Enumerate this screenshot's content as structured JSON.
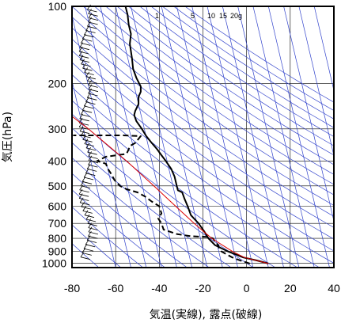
{
  "chart_data": {
    "type": "line",
    "chart_kind": "emagram",
    "xlabel": "気温(実線), 露点(破線)",
    "ylabel": "気圧(hPa)",
    "xlim": [
      -80,
      40
    ],
    "ylim": [
      1040,
      100
    ],
    "y_scale": "log",
    "grid": true,
    "x_ticks": [
      -80,
      -60,
      -40,
      -20,
      0,
      20,
      40
    ],
    "y_ticks": [
      100,
      200,
      300,
      400,
      500,
      600,
      700,
      800,
      900,
      1000
    ],
    "mixing_ratio_labels": [
      "1",
      "5",
      "10",
      "15",
      "20",
      "g"
    ],
    "series": [
      {
        "role": "temperature",
        "style": "solid",
        "color": "#000000",
        "points": [
          {
            "t": 10.0,
            "p": 1003
          },
          {
            "t": 4.5,
            "p": 975
          },
          {
            "t": -1.5,
            "p": 950
          },
          {
            "t": -8.5,
            "p": 900
          },
          {
            "t": -14.5,
            "p": 850
          },
          {
            "t": -17.5,
            "p": 800
          },
          {
            "t": -19.5,
            "p": 750
          },
          {
            "t": -22.0,
            "p": 700
          },
          {
            "t": -25.5,
            "p": 650
          },
          {
            "t": -27.0,
            "p": 600
          },
          {
            "t": -28.5,
            "p": 560
          },
          {
            "t": -29.5,
            "p": 530
          },
          {
            "t": -31.5,
            "p": 520
          },
          {
            "t": -32.0,
            "p": 500
          },
          {
            "t": -33.0,
            "p": 460
          },
          {
            "t": -34.5,
            "p": 430
          },
          {
            "t": -37.0,
            "p": 400
          },
          {
            "t": -39.0,
            "p": 380
          },
          {
            "t": -41.0,
            "p": 360
          },
          {
            "t": -43.5,
            "p": 340
          },
          {
            "t": -46.0,
            "p": 320
          },
          {
            "t": -48.0,
            "p": 300
          },
          {
            "t": -50.5,
            "p": 280
          },
          {
            "t": -51.5,
            "p": 265
          },
          {
            "t": -51.0,
            "p": 255
          },
          {
            "t": -49.5,
            "p": 240
          },
          {
            "t": -49.5,
            "p": 225
          },
          {
            "t": -48.5,
            "p": 215
          },
          {
            "t": -48.5,
            "p": 205
          },
          {
            "t": -50.5,
            "p": 190
          },
          {
            "t": -52.0,
            "p": 175
          },
          {
            "t": -52.5,
            "p": 160
          },
          {
            "t": -53.5,
            "p": 140
          },
          {
            "t": -53.0,
            "p": 128
          },
          {
            "t": -54.0,
            "p": 118
          },
          {
            "t": -54.5,
            "p": 108
          },
          {
            "t": -55.5,
            "p": 100
          }
        ]
      },
      {
        "role": "dewpoint",
        "style": "dashed",
        "color": "#000000",
        "points": [
          {
            "t": 1.5,
            "p": 1003
          },
          {
            "t": -3.0,
            "p": 975
          },
          {
            "t": -6.5,
            "p": 950
          },
          {
            "t": -9.0,
            "p": 925
          },
          {
            "t": -11.5,
            "p": 900
          },
          {
            "t": -12.5,
            "p": 875
          },
          {
            "t": -13.0,
            "p": 850
          },
          {
            "t": -15.5,
            "p": 800
          },
          {
            "t": -18.0,
            "p": 790
          },
          {
            "t": -25.5,
            "p": 785
          },
          {
            "t": -32.0,
            "p": 770
          },
          {
            "t": -38.0,
            "p": 740
          },
          {
            "t": -39.0,
            "p": 700
          },
          {
            "t": -40.5,
            "p": 670
          },
          {
            "t": -39.0,
            "p": 640
          },
          {
            "t": -40.0,
            "p": 600
          },
          {
            "t": -43.5,
            "p": 575
          },
          {
            "t": -46.5,
            "p": 550
          },
          {
            "t": -50.0,
            "p": 530
          },
          {
            "t": -55.0,
            "p": 515
          },
          {
            "t": -58.0,
            "p": 500
          },
          {
            "t": -60.5,
            "p": 475
          },
          {
            "t": -62.0,
            "p": 450
          },
          {
            "t": -63.5,
            "p": 430
          },
          {
            "t": -64.5,
            "p": 410
          },
          {
            "t": -68.5,
            "p": 400
          },
          {
            "t": -64.5,
            "p": 385
          },
          {
            "t": -55.0,
            "p": 375
          },
          {
            "t": -54.0,
            "p": 360
          },
          {
            "t": -53.5,
            "p": 350
          },
          {
            "t": -51.0,
            "p": 340
          },
          {
            "t": -48.5,
            "p": 320
          },
          {
            "t": -57.0,
            "p": 318
          },
          {
            "t": -79.5,
            "p": 318
          }
        ]
      },
      {
        "role": "parcel",
        "style": "solid",
        "color": "#dd0000",
        "points": [
          {
            "t": 10.0,
            "p": 1003
          },
          {
            "t": -1.0,
            "p": 950
          },
          {
            "t": -6.5,
            "p": 900
          },
          {
            "t": -16.0,
            "p": 800
          },
          {
            "t": -24.0,
            "p": 700
          },
          {
            "t": -32.5,
            "p": 600
          },
          {
            "t": -42.5,
            "p": 500
          },
          {
            "t": -55.0,
            "p": 400
          },
          {
            "t": -72.5,
            "p": 300
          },
          {
            "t": -80.0,
            "p": 268
          }
        ]
      }
    ]
  }
}
